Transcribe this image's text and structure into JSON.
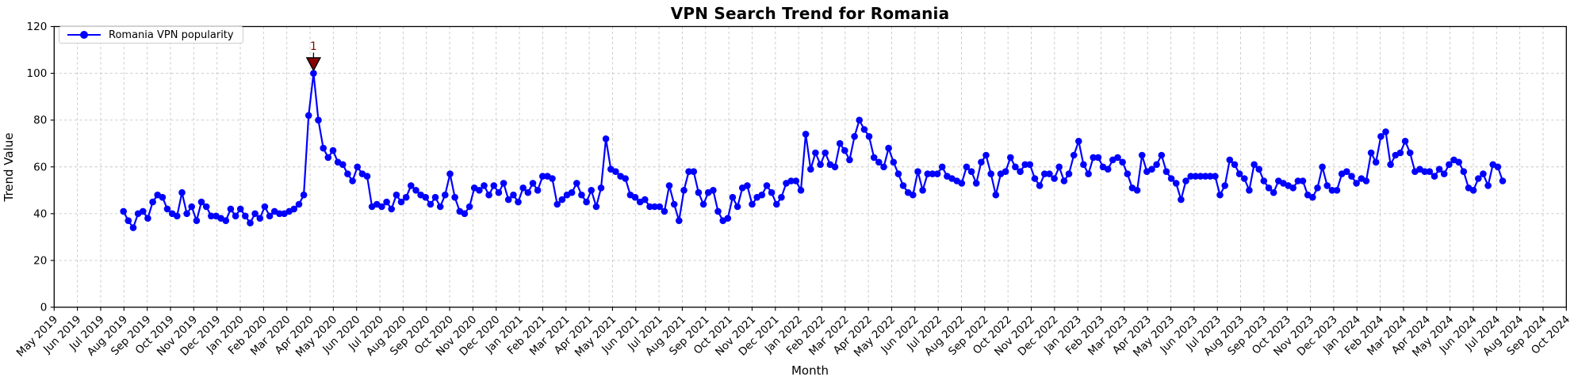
{
  "figure": {
    "title": "VPN Search Trend for Romania",
    "x_axis_label": "Month",
    "y_axis_label": "Trend Value",
    "legend": {
      "label": "Romania VPN popularity"
    }
  },
  "chart_data": {
    "type": "line",
    "title": "VPN Search Trend for Romania",
    "xlabel": "Month",
    "ylabel": "Trend Value",
    "ylim": [
      0,
      120
    ],
    "yticks": [
      0,
      20,
      40,
      60,
      80,
      100,
      120
    ],
    "grid": true,
    "grid_style": "dashed",
    "legend_position": "upper left",
    "line_color": "#0000ff",
    "marker": "circle",
    "annotation_color": "#8b0000",
    "x_tick_labels": [
      "May 2019",
      "Jun 2019",
      "Jul 2019",
      "Aug 2019",
      "Sep 2019",
      "Oct 2019",
      "Nov 2019",
      "Dec 2019",
      "Jan 2020",
      "Feb 2020",
      "Mar 2020",
      "Apr 2020",
      "May 2020",
      "Jun 2020",
      "Jul 2020",
      "Aug 2020",
      "Sep 2020",
      "Oct 2020",
      "Nov 2020",
      "Dec 2020",
      "Jan 2021",
      "Feb 2021",
      "Mar 2021",
      "Apr 2021",
      "May 2021",
      "Jun 2021",
      "Jul 2021",
      "Aug 2021",
      "Sep 2021",
      "Oct 2021",
      "Nov 2021",
      "Dec 2021",
      "Jan 2022",
      "Feb 2022",
      "Mar 2022",
      "Apr 2022",
      "May 2022",
      "Jun 2022",
      "Jul 2022",
      "Aug 2022",
      "Sep 2022",
      "Oct 2022",
      "Nov 2022",
      "Dec 2022",
      "Jan 2023",
      "Feb 2023",
      "Mar 2023",
      "Apr 2023",
      "May 2023",
      "Jun 2023",
      "Jul 2023",
      "Aug 2023",
      "Sep 2023",
      "Oct 2023",
      "Nov 2023",
      "Dec 2023",
      "Jan 2024",
      "Feb 2024",
      "Mar 2024",
      "Apr 2024",
      "May 2024",
      "Jun 2024",
      "Jul 2024",
      "Aug 2024",
      "Sep 2024",
      "Oct 2024"
    ],
    "series": [
      {
        "name": "Romania VPN popularity",
        "values": [
          41,
          37,
          34,
          40,
          41,
          38,
          45,
          48,
          47,
          42,
          40,
          39,
          49,
          40,
          43,
          37,
          45,
          43,
          39,
          39,
          38,
          37,
          42,
          39,
          42,
          39,
          36,
          40,
          38,
          43,
          39,
          41,
          40,
          40,
          41,
          42,
          44,
          48,
          82,
          100,
          80,
          68,
          64,
          67,
          62,
          61,
          57,
          54,
          60,
          57,
          56,
          43,
          44,
          43,
          45,
          42,
          48,
          45,
          47,
          52,
          50,
          48,
          47,
          44,
          47,
          43,
          48,
          57,
          47,
          41,
          40,
          43,
          51,
          50,
          52,
          48,
          52,
          49,
          53,
          46,
          48,
          45,
          51,
          49,
          53,
          50,
          56,
          56,
          55,
          44,
          46,
          48,
          49,
          53,
          48,
          45,
          50,
          43,
          51,
          72,
          59,
          58,
          56,
          55,
          48,
          47,
          45,
          46,
          43,
          43,
          43,
          41,
          52,
          44,
          37,
          50,
          58,
          58,
          49,
          44,
          49,
          50,
          41,
          37,
          38,
          47,
          43,
          51,
          52,
          44,
          47,
          48,
          52,
          49,
          44,
          47,
          53,
          54,
          54,
          50,
          74,
          59,
          66,
          61,
          66,
          61,
          60,
          70,
          67,
          63,
          73,
          80,
          76,
          73,
          64,
          62,
          60,
          68,
          62,
          57,
          52,
          49,
          48,
          58,
          50,
          57,
          57,
          57,
          60,
          56,
          55,
          54,
          53,
          60,
          58,
          53,
          62,
          65,
          57,
          48,
          57,
          58,
          64,
          60,
          58,
          61,
          61,
          55,
          52,
          57,
          57,
          55,
          60,
          54,
          57,
          65,
          71,
          61,
          57,
          64,
          64,
          60,
          59,
          63,
          64,
          62,
          57,
          51,
          50,
          65,
          58,
          59,
          61,
          65,
          58,
          55,
          53,
          46,
          54,
          56,
          56,
          56,
          56,
          56,
          56,
          48,
          52,
          63,
          61,
          57,
          55,
          50,
          61,
          59,
          54,
          51,
          49,
          54,
          53,
          52,
          51,
          54,
          54,
          48,
          47,
          51,
          60,
          52,
          50,
          50,
          57,
          58,
          56,
          53,
          55,
          54,
          66,
          62,
          73,
          75,
          61,
          65,
          66,
          71,
          66,
          58,
          59,
          58,
          58,
          56,
          59,
          57,
          61,
          63,
          62,
          58,
          51,
          50,
          55,
          57,
          52,
          61,
          60,
          54
        ]
      }
    ],
    "annotations": [
      {
        "text": "1",
        "marker": "triangle-down",
        "color": "#8b0000",
        "point_index": 39,
        "value": 100
      }
    ]
  }
}
